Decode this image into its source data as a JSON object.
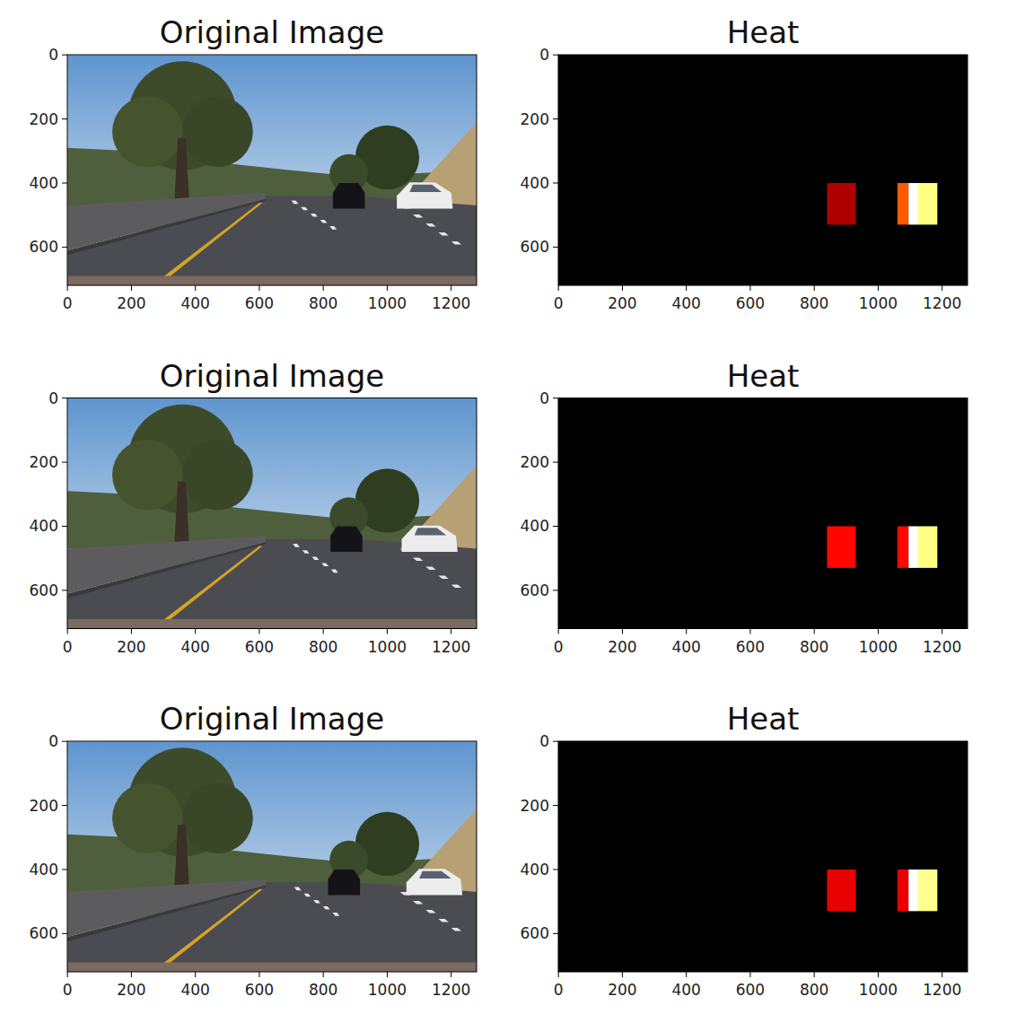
{
  "chart_data": [
    {
      "type": "image",
      "title": "Original Image",
      "xlim": [
        -0.5,
        1279.5
      ],
      "ylim": [
        719.5,
        -0.5
      ],
      "xticks": [
        0,
        200,
        400,
        600,
        800,
        1000,
        1200
      ],
      "yticks": [
        0,
        200,
        400,
        600
      ]
    },
    {
      "type": "heatmap",
      "title": "Heat",
      "xlim": [
        -0.5,
        1279.5
      ],
      "ylim": [
        719.5,
        -0.5
      ],
      "xticks": [
        0,
        200,
        400,
        600,
        800,
        1000,
        1200
      ],
      "yticks": [
        0,
        200,
        400,
        600
      ],
      "cells": [
        {
          "x": [
            840,
            930
          ],
          "y": [
            400,
            530
          ],
          "value": 2
        },
        {
          "x": [
            1060,
            1095
          ],
          "y": [
            400,
            530
          ],
          "value": 4
        },
        {
          "x": [
            1095,
            1125
          ],
          "y": [
            400,
            530
          ],
          "value": 8
        },
        {
          "x": [
            1125,
            1185
          ],
          "y": [
            400,
            530
          ],
          "value": 7
        }
      ]
    },
    {
      "type": "image",
      "title": "Original Image",
      "xlim": [
        -0.5,
        1279.5
      ],
      "ylim": [
        719.5,
        -0.5
      ],
      "xticks": [
        0,
        200,
        400,
        600,
        800,
        1000,
        1200
      ],
      "yticks": [
        0,
        200,
        400,
        600
      ]
    },
    {
      "type": "heatmap",
      "title": "Heat",
      "xlim": [
        -0.5,
        1279.5
      ],
      "ylim": [
        719.5,
        -0.5
      ],
      "xticks": [
        0,
        200,
        400,
        600,
        800,
        1000,
        1200
      ],
      "yticks": [
        0,
        200,
        400,
        600
      ],
      "cells": [
        {
          "x": [
            840,
            930
          ],
          "y": [
            400,
            530
          ],
          "value": 3
        },
        {
          "x": [
            1060,
            1095
          ],
          "y": [
            400,
            530
          ],
          "value": 3
        },
        {
          "x": [
            1095,
            1125
          ],
          "y": [
            400,
            530
          ],
          "value": 8
        },
        {
          "x": [
            1125,
            1185
          ],
          "y": [
            400,
            530
          ],
          "value": 7
        }
      ]
    },
    {
      "type": "image",
      "title": "Original Image",
      "xlim": [
        -0.5,
        1279.5
      ],
      "ylim": [
        719.5,
        -0.5
      ],
      "xticks": [
        0,
        200,
        400,
        600,
        800,
        1000,
        1200
      ],
      "yticks": [
        0,
        200,
        400,
        600
      ]
    },
    {
      "type": "heatmap",
      "title": "Heat",
      "xlim": [
        -0.5,
        1279.5
      ],
      "ylim": [
        719.5,
        -0.5
      ],
      "xticks": [
        0,
        200,
        400,
        600,
        800,
        1000,
        1200
      ],
      "yticks": [
        0,
        200,
        400,
        600
      ],
      "cells": [
        {
          "x": [
            840,
            930
          ],
          "y": [
            400,
            530
          ],
          "value": 3
        },
        {
          "x": [
            1060,
            1095
          ],
          "y": [
            400,
            530
          ],
          "value": 3
        },
        {
          "x": [
            1095,
            1125
          ],
          "y": [
            400,
            530
          ],
          "value": 9
        },
        {
          "x": [
            1125,
            1185
          ],
          "y": [
            400,
            530
          ],
          "value": 8
        }
      ]
    }
  ]
}
